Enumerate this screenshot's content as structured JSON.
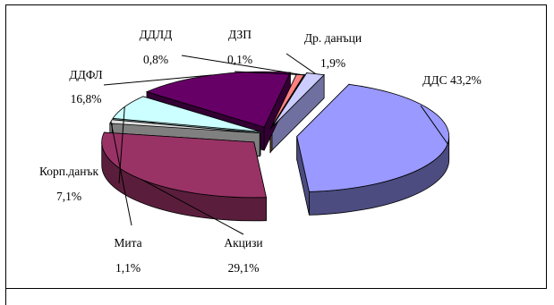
{
  "chart_data": {
    "type": "pie",
    "title": "",
    "style": "3d-exploded",
    "slices": [
      {
        "name": "ДДС",
        "value": 43.2,
        "label": "ДДС 43,2%",
        "top": "#9999ff",
        "side": "#4c4c80"
      },
      {
        "name": "Акцизи",
        "value": 29.1,
        "label": "Акцизи",
        "pct": "29,1%",
        "top": "#993366",
        "side": "#5a1e3c"
      },
      {
        "name": "Мита",
        "value": 1.1,
        "label": "Мита",
        "pct": "1,1%",
        "top": "#dcdcdc",
        "side": "#808080"
      },
      {
        "name": "Корп.данък",
        "value": 7.1,
        "label": "Корп.данък",
        "pct": "7,1%",
        "top": "#ccffff",
        "side": "#7aa0a0"
      },
      {
        "name": "ДДФЛ",
        "value": 16.8,
        "label": "ДДФЛ",
        "pct": "16,8%",
        "top": "#660066",
        "side": "#330033"
      },
      {
        "name": "ДДЛД",
        "value": 0.8,
        "label": "ДДЛД",
        "pct": "0,8%",
        "top": "#ff8080",
        "side": "#8a4545"
      },
      {
        "name": "ДЗП",
        "value": 0.1,
        "label": "ДЗП",
        "pct": "0,1%",
        "top": "#ffd0a0",
        "side": "#8a6a40"
      },
      {
        "name": "Др. данъци",
        "value": 1.9,
        "label": "Др. данъци",
        "pct": "1,9%",
        "top": "#ccccff",
        "side": "#7070a0"
      }
    ]
  }
}
